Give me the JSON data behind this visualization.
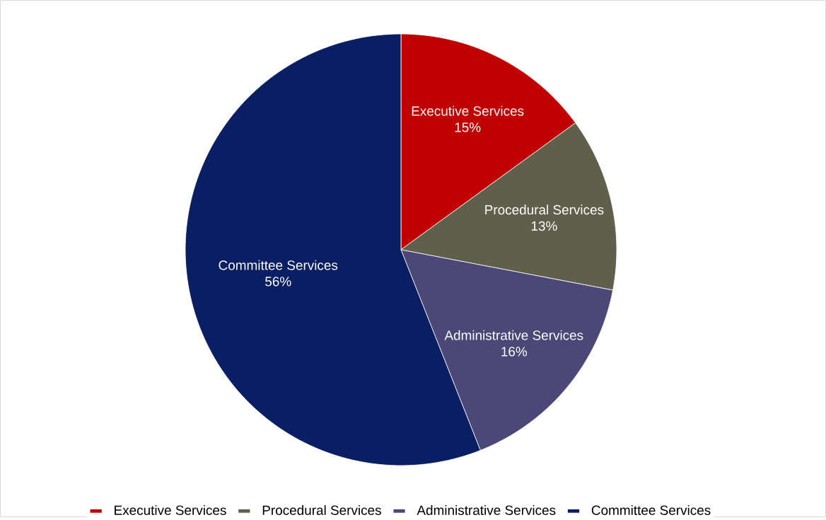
{
  "chart_data": {
    "type": "pie",
    "categories": [
      "Executive Services",
      "Procedural Services",
      "Administrative Services",
      "Committee Services"
    ],
    "values": [
      15,
      13,
      16,
      56
    ],
    "value_labels": [
      "15%",
      "13%",
      "16%",
      "56%"
    ],
    "colors": [
      "#c00000",
      "#5f5f4b",
      "#4b4878",
      "#0a1f63"
    ],
    "legend": "bottom"
  }
}
